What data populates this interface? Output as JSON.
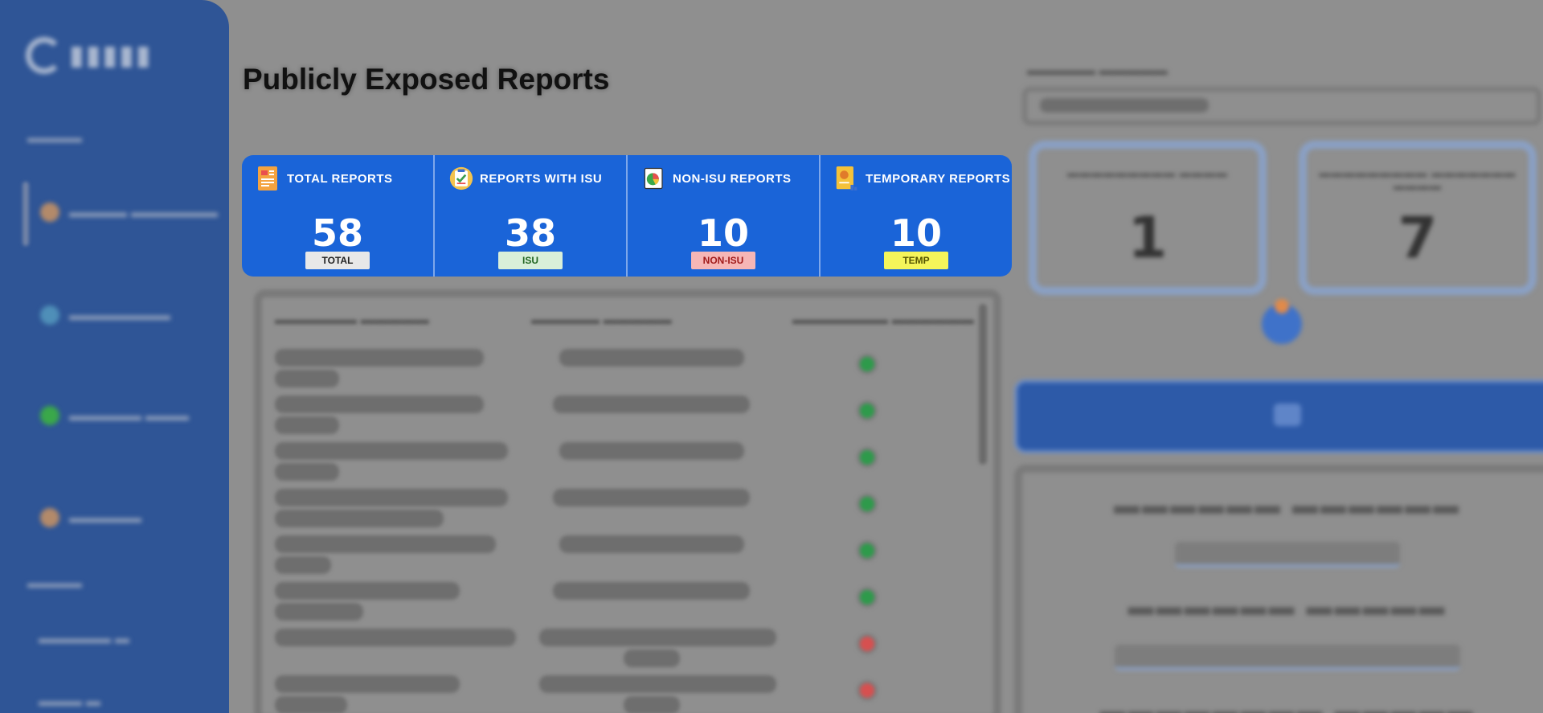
{
  "page": {
    "title": "Publicly Exposed Reports"
  },
  "stats": [
    {
      "label": "TOTAL REPORTS",
      "value": "58",
      "badge": "TOTAL",
      "badge_bg": "#e8e8e8",
      "badge_color": "#222222",
      "icon": "report-stack-icon"
    },
    {
      "label": "REPORTS WITH ISU",
      "value": "38",
      "badge": "ISU",
      "badge_bg": "#d9efd9",
      "badge_color": "#226622",
      "icon": "clipboard-check-icon"
    },
    {
      "label": "NON-ISU REPORTS",
      "value": "10",
      "badge": "NON-ISU",
      "badge_bg": "#f6b6b6",
      "badge_color": "#a11b1b",
      "icon": "pie-report-icon"
    },
    {
      "label": "TEMPORARY REPORTS",
      "value": "10",
      "badge": "TEMP",
      "badge_bg": "#f5f55a",
      "badge_color": "#555500",
      "icon": "temp-document-icon"
    }
  ],
  "right_panel": {
    "metrics": [
      {
        "value": "1"
      },
      {
        "value": "7"
      }
    ]
  },
  "colors": {
    "sidebar": "#2f5596",
    "stats_bg": "#1a64d8",
    "status_green": "#2e9a4b",
    "status_red": "#d65050"
  }
}
